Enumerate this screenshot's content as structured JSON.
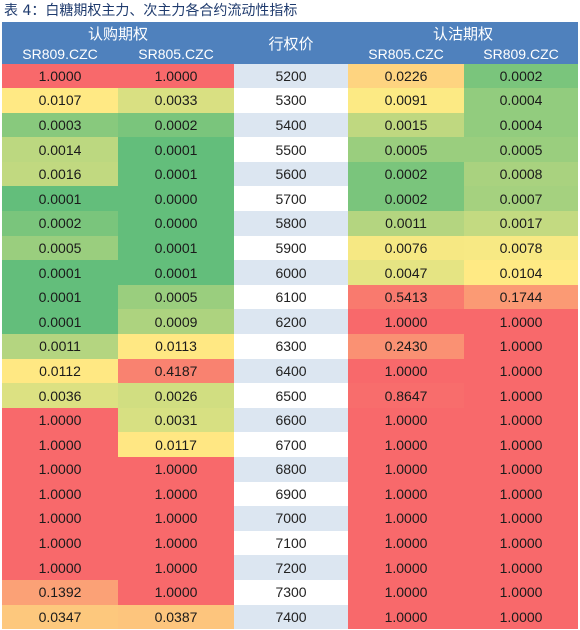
{
  "caption": "表 4：白糖期权主力、次主力各合约流动性指标",
  "header": {
    "call_group": "认购期权",
    "put_group": "认沽期权",
    "strike": "行权价",
    "call_cols": [
      "SR809.CZC",
      "SR805.CZC"
    ],
    "put_cols": [
      "SR805.CZC",
      "SR809.CZC"
    ]
  },
  "colors": {
    "header": "#4f81bd",
    "red": "#f8696b",
    "green": "#63be7b",
    "yellow": "#ffeb84",
    "orange": "#fbaa77"
  },
  "rows": [
    {
      "call809": "1.0000",
      "call805": "1.0000",
      "strike": "5200",
      "put805": "0.0226",
      "put809": "0.0002"
    },
    {
      "call809": "0.0107",
      "call805": "0.0033",
      "strike": "5300",
      "put805": "0.0091",
      "put809": "0.0004"
    },
    {
      "call809": "0.0003",
      "call805": "0.0002",
      "strike": "5400",
      "put805": "0.0015",
      "put809": "0.0004"
    },
    {
      "call809": "0.0014",
      "call805": "0.0001",
      "strike": "5500",
      "put805": "0.0005",
      "put809": "0.0005"
    },
    {
      "call809": "0.0016",
      "call805": "0.0001",
      "strike": "5600",
      "put805": "0.0002",
      "put809": "0.0008"
    },
    {
      "call809": "0.0001",
      "call805": "0.0000",
      "strike": "5700",
      "put805": "0.0002",
      "put809": "0.0007"
    },
    {
      "call809": "0.0002",
      "call805": "0.0000",
      "strike": "5800",
      "put805": "0.0011",
      "put809": "0.0017"
    },
    {
      "call809": "0.0005",
      "call805": "0.0001",
      "strike": "5900",
      "put805": "0.0076",
      "put809": "0.0078"
    },
    {
      "call809": "0.0001",
      "call805": "0.0001",
      "strike": "6000",
      "put805": "0.0047",
      "put809": "0.0104"
    },
    {
      "call809": "0.0001",
      "call805": "0.0005",
      "strike": "6100",
      "put805": "0.5413",
      "put809": "0.1744"
    },
    {
      "call809": "0.0001",
      "call805": "0.0009",
      "strike": "6200",
      "put805": "1.0000",
      "put809": "1.0000"
    },
    {
      "call809": "0.0011",
      "call805": "0.0113",
      "strike": "6300",
      "put805": "0.2430",
      "put809": "1.0000"
    },
    {
      "call809": "0.0112",
      "call805": "0.4187",
      "strike": "6400",
      "put805": "1.0000",
      "put809": "1.0000"
    },
    {
      "call809": "0.0036",
      "call805": "0.0026",
      "strike": "6500",
      "put805": "0.8647",
      "put809": "1.0000"
    },
    {
      "call809": "1.0000",
      "call805": "0.0031",
      "strike": "6600",
      "put805": "1.0000",
      "put809": "1.0000"
    },
    {
      "call809": "1.0000",
      "call805": "0.0117",
      "strike": "6700",
      "put805": "1.0000",
      "put809": "1.0000"
    },
    {
      "call809": "1.0000",
      "call805": "1.0000",
      "strike": "6800",
      "put805": "1.0000",
      "put809": "1.0000"
    },
    {
      "call809": "1.0000",
      "call805": "1.0000",
      "strike": "6900",
      "put805": "1.0000",
      "put809": "1.0000"
    },
    {
      "call809": "1.0000",
      "call805": "1.0000",
      "strike": "7000",
      "put805": "1.0000",
      "put809": "1.0000"
    },
    {
      "call809": "1.0000",
      "call805": "1.0000",
      "strike": "7100",
      "put805": "1.0000",
      "put809": "1.0000"
    },
    {
      "call809": "1.0000",
      "call805": "1.0000",
      "strike": "7200",
      "put805": "1.0000",
      "put809": "1.0000"
    },
    {
      "call809": "0.1392",
      "call805": "1.0000",
      "strike": "7300",
      "put805": "1.0000",
      "put809": "1.0000"
    },
    {
      "call809": "0.0347",
      "call805": "0.0387",
      "strike": "7400",
      "put805": "1.0000",
      "put809": "1.0000"
    }
  ]
}
